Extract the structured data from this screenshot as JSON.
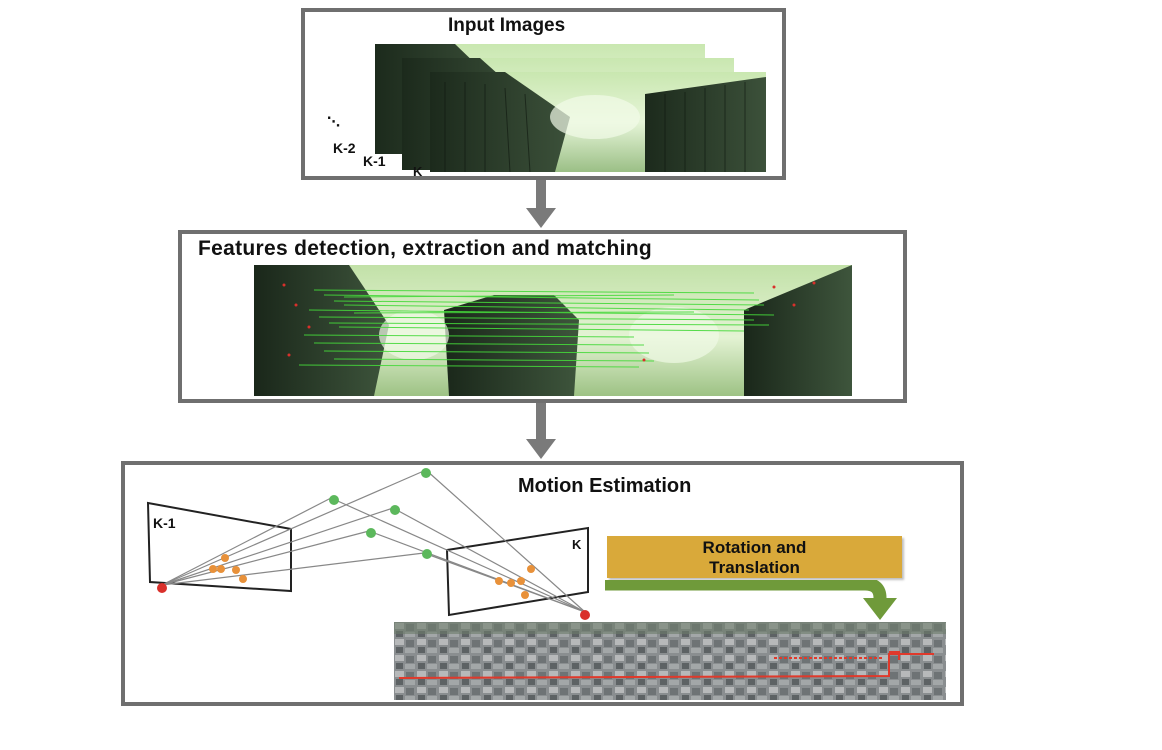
{
  "panels": {
    "input": {
      "title": "Input Images",
      "labels": {
        "ellipsis": "⋱",
        "k2": "K-2",
        "k1": "K-1",
        "k": "K"
      }
    },
    "features": {
      "title": "Features detection, extraction and matching"
    },
    "motion": {
      "title": "Motion Estimation",
      "left_frame_label": "K-1",
      "right_frame_label": "K",
      "box_label_line1": "Rotation and",
      "box_label_line2": "Translation"
    }
  },
  "colors": {
    "panel_border": "#6f6f6f",
    "arrow": "#7a7a7a",
    "rt_box": "#d9a93a",
    "green_arrow": "#6f9a3a",
    "feature_point": "#e8913a",
    "world_point": "#5cb85c",
    "camera_center": "#d9302b",
    "trajectory": "#e0392b"
  }
}
